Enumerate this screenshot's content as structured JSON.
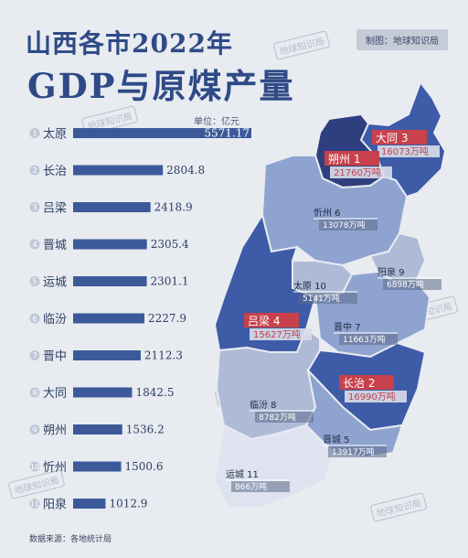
{
  "header": {
    "title_line1": "山西各市2022年",
    "title_line2": "GDP与原煤产量",
    "credit": "制图：地球知识局",
    "unit": "单位：亿元",
    "watermark": "地球知识局"
  },
  "footer": {
    "source": "数据来源：各地统计局"
  },
  "colors": {
    "bar": "#3c5a9a",
    "accent_red": "#c8414b",
    "dark": "#2e4a86",
    "bg": "#e8ebf0"
  },
  "chart_data": [
    {
      "type": "bar",
      "orientation": "horizontal",
      "categories": [
        "太原",
        "长治",
        "吕梁",
        "晋城",
        "运城",
        "临汾",
        "晋中",
        "大同",
        "朔州",
        "忻州",
        "阳泉"
      ],
      "ranks": [
        "1",
        "2",
        "3",
        "4",
        "5",
        "6",
        "7",
        "8",
        "9",
        "10",
        "11"
      ],
      "values": [
        5571.17,
        2804.8,
        2418.9,
        2305.4,
        2301.1,
        2227.9,
        2112.3,
        1842.5,
        1536.2,
        1500.6,
        1012.9
      ],
      "value_labels": [
        "5571.17",
        "2804.8",
        "2418.9",
        "2305.4",
        "2301.1",
        "2227.9",
        "2112.3",
        "1842.5",
        "1536.2",
        "1500.6",
        "1012.9"
      ],
      "xlim": [
        0,
        5571.17
      ]
    },
    {
      "type": "map",
      "regions": [
        {
          "name": "大同",
          "rank": "3",
          "coal": "16073万吨",
          "highlight": true
        },
        {
          "name": "朔州",
          "rank": "1",
          "coal": "21760万吨",
          "highlight": true
        },
        {
          "name": "忻州",
          "rank": "6",
          "coal": "13078万吨",
          "highlight": false
        },
        {
          "name": "阳泉",
          "rank": "9",
          "coal": "6898万吨",
          "highlight": false
        },
        {
          "name": "太原",
          "rank": "10",
          "coal": "5141万吨",
          "highlight": false
        },
        {
          "name": "吕梁",
          "rank": "4",
          "coal": "15627万吨",
          "highlight": true
        },
        {
          "name": "晋中",
          "rank": "7",
          "coal": "11663万吨",
          "highlight": false
        },
        {
          "name": "长治",
          "rank": "2",
          "coal": "16990万吨",
          "highlight": true
        },
        {
          "name": "临汾",
          "rank": "8",
          "coal": "8782万吨",
          "highlight": false
        },
        {
          "name": "晋城",
          "rank": "5",
          "coal": "13917万吨",
          "highlight": false
        },
        {
          "name": "运城",
          "rank": "11",
          "coal": "866万吨",
          "highlight": false
        }
      ]
    }
  ]
}
